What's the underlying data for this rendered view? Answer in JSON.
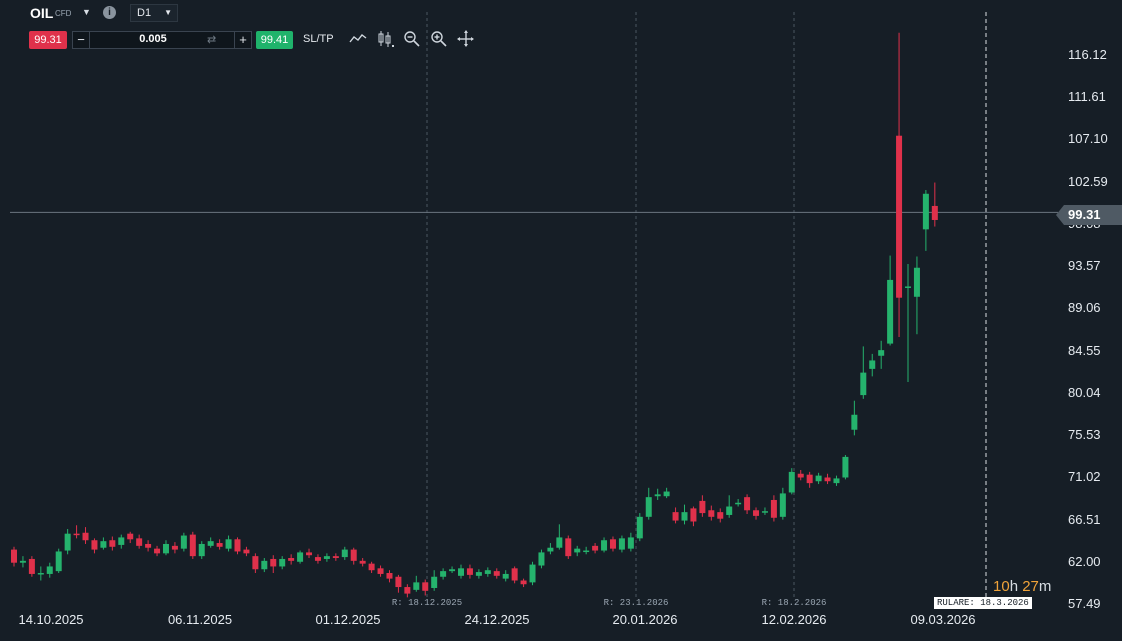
{
  "toolbar": {
    "symbol": "OIL",
    "symbol_type": "CFD",
    "timeframe": "D1",
    "sell_price": "99.31",
    "buy_price": "99.41",
    "volume": "0.005",
    "sltp_label": "SL/TP",
    "icons": [
      "chart-type-icon",
      "candles-icon",
      "zoom-out-icon",
      "zoom-in-icon",
      "crosshair-icon"
    ]
  },
  "current_price": "99.31",
  "rollover": {
    "label": "RULARE: 18.3.2026",
    "countdown_h": "10",
    "h_unit": "h",
    "countdown_m": "27",
    "m_unit": "m"
  },
  "colors": {
    "up": "#25b36d",
    "down": "#e0314b",
    "background": "#161e26",
    "sell": "#e0314b",
    "buy": "#1fb36b"
  },
  "chart_data": {
    "type": "candlestick",
    "y_ticks": [
      "116.12",
      "111.61",
      "107.10",
      "102.59",
      "98.08",
      "93.57",
      "89.06",
      "84.55",
      "80.04",
      "75.53",
      "71.02",
      "66.51",
      "62.00",
      "57.49"
    ],
    "ylim": [
      57.49,
      116.12
    ],
    "x_ticks": [
      "14.10.2025",
      "06.11.2025",
      "01.12.2025",
      "24.12.2025",
      "20.01.2026",
      "12.02.2026",
      "09.03.2026"
    ],
    "rollover_marks": [
      "R: 18.12.2025",
      "R: 23.1.2026",
      "R: 18.2.2026"
    ],
    "candles": [
      [
        63.3,
        61.9,
        63.6,
        61.5
      ],
      [
        61.9,
        62.1,
        62.6,
        61.4
      ],
      [
        62.3,
        60.7,
        62.6,
        60.4
      ],
      [
        60.7,
        60.8,
        61.5,
        60.0
      ],
      [
        60.7,
        61.5,
        61.9,
        60.3
      ],
      [
        61.0,
        63.1,
        63.4,
        60.8
      ],
      [
        63.2,
        65.0,
        65.5,
        62.8
      ],
      [
        65.0,
        64.9,
        65.9,
        64.5
      ],
      [
        65.1,
        64.3,
        65.7,
        63.9
      ],
      [
        64.3,
        63.3,
        64.5,
        62.9
      ],
      [
        63.5,
        64.2,
        64.6,
        63.3
      ],
      [
        64.3,
        63.6,
        64.7,
        63.2
      ],
      [
        63.8,
        64.6,
        64.9,
        63.4
      ],
      [
        65.0,
        64.4,
        65.2,
        64.0
      ],
      [
        64.5,
        63.7,
        64.9,
        63.4
      ],
      [
        63.9,
        63.5,
        64.3,
        63.1
      ],
      [
        63.4,
        62.9,
        63.7,
        62.6
      ],
      [
        62.9,
        63.9,
        64.3,
        62.7
      ],
      [
        63.7,
        63.3,
        64.1,
        62.9
      ],
      [
        63.4,
        64.8,
        65.1,
        63.1
      ],
      [
        64.9,
        62.6,
        65.2,
        62.3
      ],
      [
        62.6,
        63.9,
        64.2,
        62.3
      ],
      [
        63.7,
        64.2,
        64.6,
        63.5
      ],
      [
        64.0,
        63.6,
        64.4,
        63.3
      ],
      [
        63.4,
        64.4,
        64.8,
        63.1
      ],
      [
        64.4,
        63.1,
        64.6,
        62.8
      ],
      [
        63.3,
        62.9,
        63.6,
        62.6
      ],
      [
        62.6,
        61.2,
        62.9,
        60.8
      ],
      [
        61.2,
        62.1,
        62.4,
        60.9
      ],
      [
        62.3,
        61.5,
        62.7,
        60.8
      ],
      [
        61.5,
        62.3,
        62.6,
        61.2
      ],
      [
        62.4,
        62.1,
        62.8,
        61.7
      ],
      [
        62.0,
        63.0,
        63.2,
        61.8
      ],
      [
        63.0,
        62.7,
        63.4,
        62.4
      ],
      [
        62.5,
        62.1,
        62.8,
        61.8
      ],
      [
        62.3,
        62.6,
        62.9,
        62.0
      ],
      [
        62.6,
        62.4,
        62.9,
        62.1
      ],
      [
        62.5,
        63.3,
        63.6,
        62.2
      ],
      [
        63.3,
        62.1,
        63.5,
        61.7
      ],
      [
        62.1,
        61.8,
        62.4,
        61.5
      ],
      [
        61.8,
        61.1,
        62.0,
        60.8
      ],
      [
        61.3,
        60.7,
        61.6,
        60.4
      ],
      [
        60.8,
        60.2,
        61.1,
        59.8
      ],
      [
        60.4,
        59.3,
        60.6,
        58.7
      ],
      [
        59.3,
        58.6,
        59.6,
        58.2
      ],
      [
        59.0,
        59.8,
        60.5,
        58.8
      ],
      [
        59.8,
        58.9,
        60.1,
        58.4
      ],
      [
        59.2,
        60.4,
        61.1,
        58.9
      ],
      [
        60.4,
        61.0,
        61.3,
        60.1
      ],
      [
        61.0,
        61.2,
        61.5,
        60.8
      ],
      [
        60.5,
        61.3,
        61.7,
        60.2
      ],
      [
        61.3,
        60.6,
        61.7,
        60.2
      ],
      [
        60.5,
        60.9,
        61.2,
        60.2
      ],
      [
        60.7,
        61.1,
        61.4,
        60.4
      ],
      [
        61.0,
        60.5,
        61.3,
        60.2
      ],
      [
        60.2,
        60.7,
        61.1,
        59.9
      ],
      [
        61.3,
        60.0,
        61.5,
        59.7
      ],
      [
        60.0,
        59.6,
        60.2,
        59.3
      ],
      [
        59.8,
        61.7,
        62.0,
        59.5
      ],
      [
        61.6,
        63.0,
        63.3,
        61.3
      ],
      [
        63.1,
        63.5,
        64.0,
        62.8
      ],
      [
        63.5,
        64.6,
        66.0,
        63.3
      ],
      [
        64.5,
        62.6,
        64.8,
        62.3
      ],
      [
        63.0,
        63.4,
        63.7,
        62.6
      ],
      [
        63.1,
        63.2,
        63.6,
        62.8
      ],
      [
        63.7,
        63.2,
        64.0,
        62.9
      ],
      [
        63.2,
        64.3,
        64.6,
        63.0
      ],
      [
        64.4,
        63.4,
        64.7,
        63.1
      ],
      [
        63.3,
        64.5,
        64.8,
        63.0
      ],
      [
        63.4,
        64.6,
        65.1,
        63.1
      ],
      [
        64.5,
        66.8,
        67.2,
        64.2
      ],
      [
        66.8,
        68.9,
        69.9,
        66.5
      ],
      [
        69.0,
        69.2,
        69.8,
        68.6
      ],
      [
        69.0,
        69.5,
        69.9,
        68.8
      ],
      [
        67.3,
        66.4,
        67.8,
        66.1
      ],
      [
        66.4,
        67.3,
        68.1,
        66.0
      ],
      [
        67.7,
        66.3,
        67.9,
        65.8
      ],
      [
        68.5,
        67.2,
        69.1,
        66.8
      ],
      [
        67.5,
        66.8,
        68.0,
        66.4
      ],
      [
        67.3,
        66.6,
        67.7,
        66.2
      ],
      [
        67.0,
        67.9,
        69.1,
        66.7
      ],
      [
        68.3,
        68.3,
        68.7,
        67.9
      ],
      [
        68.9,
        67.5,
        69.2,
        67.1
      ],
      [
        67.5,
        66.9,
        67.8,
        66.5
      ],
      [
        67.4,
        67.4,
        67.8,
        67.0
      ],
      [
        68.6,
        66.7,
        69.1,
        66.3
      ],
      [
        66.8,
        69.3,
        69.9,
        66.5
      ],
      [
        69.4,
        71.6,
        72.0,
        69.2
      ],
      [
        71.4,
        71.0,
        71.8,
        70.7
      ],
      [
        71.3,
        70.4,
        71.6,
        69.9
      ],
      [
        70.6,
        71.2,
        71.5,
        70.3
      ],
      [
        71.0,
        70.6,
        71.4,
        70.3
      ],
      [
        70.4,
        70.9,
        71.2,
        70.1
      ],
      [
        71.0,
        73.2,
        73.4,
        70.8
      ],
      [
        76.1,
        77.7,
        79.2,
        75.5
      ],
      [
        79.8,
        82.2,
        85.0,
        79.4
      ],
      [
        82.6,
        83.5,
        84.2,
        81.8
      ],
      [
        84.0,
        84.6,
        85.6,
        82.6
      ],
      [
        85.3,
        92.1,
        94.7,
        85.1
      ],
      [
        107.5,
        90.2,
        118.5,
        86.0
      ],
      [
        91.4,
        91.4,
        93.8,
        81.2
      ],
      [
        90.3,
        93.4,
        94.6,
        86.3
      ],
      [
        97.5,
        101.3,
        101.7,
        95.2
      ],
      [
        100.0,
        98.5,
        102.5,
        97.8
      ]
    ]
  }
}
